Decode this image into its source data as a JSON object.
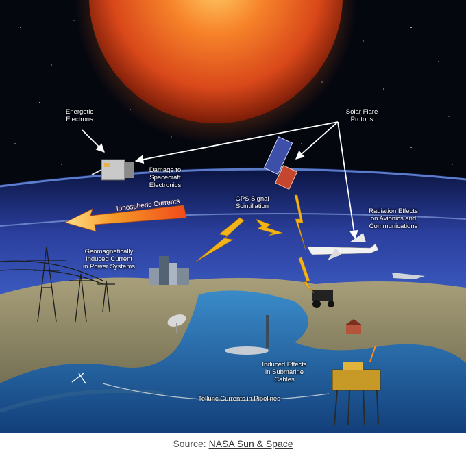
{
  "labels": {
    "energetic_electrons": [
      "Energetic",
      "Electrons"
    ],
    "solar_flare_protons": [
      "Solar Flare",
      "Protons"
    ],
    "damage_spacecraft": [
      "Damage to",
      "Spacecraft",
      "Electronics"
    ],
    "gps_scintillation": [
      "GPS Signal",
      "Scintillation"
    ],
    "radiation_effects": [
      "Radiation Effects",
      "on Avionics and",
      "Communications"
    ],
    "ionospheric_currents": "Ionospheric Currents",
    "geomagnetic_current": [
      "Geomagnetically",
      "Induced Current",
      "in Power Systems"
    ],
    "submarine_cables": [
      "Induced Effects",
      "in Submarine",
      "Cables"
    ],
    "telluric_currents": "Telluric Currents in Pipelines"
  },
  "caption": {
    "prefix": "Source: ",
    "link_text": "NASA Sun & Space"
  },
  "colors": {
    "space": "#05070f",
    "sun": "#e8541a",
    "atmosphere": "#2a4fb8",
    "ocean": "#1f6fb0",
    "land": "#8a8466",
    "arrow": "#ffffff",
    "lightning": "#f2b418",
    "ionospheric_arrow": "#f08a1c"
  }
}
